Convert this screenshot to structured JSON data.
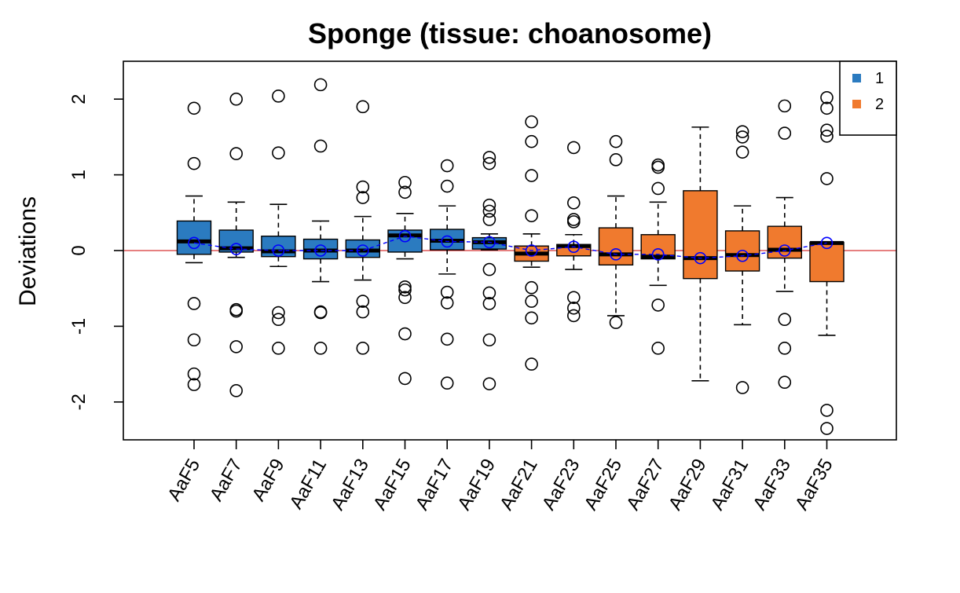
{
  "chart_data": {
    "type": "boxplot",
    "title": "Sponge (tissue: choanosome)",
    "xlabel": "",
    "ylabel": "Deviations",
    "ylim": [
      -2.5,
      2.5
    ],
    "yticks": [
      -2,
      -1,
      0,
      1,
      2
    ],
    "yticklabels": [
      "-2",
      "-1",
      "0",
      "1",
      "2"
    ],
    "reference_line": {
      "y": 0,
      "color": "#cc0000"
    },
    "mean_line_color": "#0000ff",
    "legend": {
      "position": "top-right",
      "entries": [
        {
          "label": "1",
          "color": "#2b7bc0"
        },
        {
          "label": "2",
          "color": "#f07a2e"
        }
      ]
    },
    "categories": [
      "AaF5",
      "AaF7",
      "AaF9",
      "AaF11",
      "AaF13",
      "AaF15",
      "AaF17",
      "AaF19",
      "AaF21",
      "AaF23",
      "AaF25",
      "AaF27",
      "AaF29",
      "AaF31",
      "AaF33",
      "AaF35"
    ],
    "boxes": [
      {
        "name": "AaF5",
        "group": "1",
        "whisker_low": -0.16,
        "q1": -0.05,
        "median": 0.12,
        "q3": 0.39,
        "whisker_high": 0.72,
        "mean": 0.1,
        "outliers": [
          1.88,
          1.15,
          -0.7,
          -1.18,
          -1.63,
          -1.77
        ]
      },
      {
        "name": "AaF7",
        "group": "1",
        "whisker_low": -0.09,
        "q1": -0.02,
        "median": 0.03,
        "q3": 0.27,
        "whisker_high": 0.64,
        "mean": 0.02,
        "outliers": [
          2.0,
          1.28,
          -0.78,
          -0.8,
          -1.27,
          -1.85
        ]
      },
      {
        "name": "AaF9",
        "group": "1",
        "whisker_low": -0.21,
        "q1": -0.08,
        "median": -0.01,
        "q3": 0.19,
        "whisker_high": 0.61,
        "mean": 0.0,
        "outliers": [
          2.04,
          1.29,
          -0.82,
          -0.91,
          -1.29
        ]
      },
      {
        "name": "AaF11",
        "group": "1",
        "whisker_low": -0.41,
        "q1": -0.11,
        "median": 0.0,
        "q3": 0.15,
        "whisker_high": 0.39,
        "mean": 0.0,
        "outliers": [
          2.19,
          1.38,
          -0.81,
          -0.82,
          -1.29
        ]
      },
      {
        "name": "AaF13",
        "group": "1",
        "whisker_low": -0.39,
        "q1": -0.09,
        "median": 0.0,
        "q3": 0.14,
        "whisker_high": 0.45,
        "mean": 0.0,
        "outliers": [
          1.9,
          0.84,
          0.7,
          -0.67,
          -0.81,
          -1.29
        ]
      },
      {
        "name": "AaF15",
        "group": "1",
        "whisker_low": -0.11,
        "q1": -0.02,
        "median": 0.2,
        "q3": 0.27,
        "whisker_high": 0.49,
        "mean": 0.19,
        "outliers": [
          0.9,
          0.77,
          -0.48,
          -0.52,
          -0.62,
          -1.1,
          -1.69
        ]
      },
      {
        "name": "AaF17",
        "group": "1",
        "whisker_low": -0.31,
        "q1": 0.01,
        "median": 0.13,
        "q3": 0.28,
        "whisker_high": 0.59,
        "mean": 0.12,
        "outliers": [
          1.12,
          0.85,
          -0.55,
          -0.69,
          -1.17,
          -1.75
        ]
      },
      {
        "name": "AaF19",
        "group": "1",
        "whisker_low": 0.01,
        "q1": 0.02,
        "median": 0.11,
        "q3": 0.17,
        "whisker_high": 0.22,
        "mean": 0.11,
        "outliers": [
          1.23,
          1.15,
          0.6,
          0.52,
          0.41,
          -0.25,
          -0.56,
          -0.7,
          -1.18,
          -1.76
        ]
      },
      {
        "name": "AaF21",
        "group": "2",
        "whisker_low": -0.22,
        "q1": -0.14,
        "median": -0.04,
        "q3": 0.06,
        "whisker_high": 0.22,
        "mean": 0.0,
        "outliers": [
          1.7,
          1.44,
          0.99,
          0.46,
          -0.49,
          -0.67,
          -0.89,
          -1.5
        ]
      },
      {
        "name": "AaF23",
        "group": "2",
        "whisker_low": -0.25,
        "q1": -0.07,
        "median": 0.06,
        "q3": 0.08,
        "whisker_high": 0.21,
        "mean": 0.05,
        "outliers": [
          1.36,
          0.63,
          0.41,
          0.38,
          -0.62,
          -0.76,
          -0.86
        ]
      },
      {
        "name": "AaF25",
        "group": "2",
        "whisker_low": -0.86,
        "q1": -0.19,
        "median": -0.05,
        "q3": 0.3,
        "whisker_high": 0.72,
        "mean": -0.05,
        "outliers": [
          1.44,
          1.2,
          -0.95
        ]
      },
      {
        "name": "AaF27",
        "group": "2",
        "whisker_low": -0.46,
        "q1": -0.11,
        "median": -0.08,
        "q3": 0.21,
        "whisker_high": 0.64,
        "mean": -0.05,
        "outliers": [
          1.13,
          1.1,
          0.82,
          -0.72,
          -1.29
        ]
      },
      {
        "name": "AaF29",
        "group": "2",
        "whisker_low": -1.72,
        "q1": -0.37,
        "median": -0.1,
        "q3": 0.79,
        "whisker_high": 1.63,
        "mean": -0.1,
        "outliers": []
      },
      {
        "name": "AaF31",
        "group": "2",
        "whisker_low": -0.98,
        "q1": -0.27,
        "median": -0.06,
        "q3": 0.26,
        "whisker_high": 0.59,
        "mean": -0.07,
        "outliers": [
          1.57,
          1.5,
          1.3,
          -1.81
        ]
      },
      {
        "name": "AaF33",
        "group": "2",
        "whisker_low": -0.54,
        "q1": -0.1,
        "median": 0.01,
        "q3": 0.32,
        "whisker_high": 0.7,
        "mean": 0.0,
        "outliers": [
          1.91,
          1.55,
          -0.91,
          -1.29,
          -1.74
        ]
      },
      {
        "name": "AaF35",
        "group": "2",
        "whisker_low": -1.12,
        "q1": -0.41,
        "median": 0.1,
        "q3": 0.11,
        "whisker_high": 0.11,
        "mean": 0.1,
        "outliers": [
          2.02,
          1.88,
          1.59,
          1.51,
          0.95,
          -2.11,
          -2.35
        ]
      }
    ]
  }
}
